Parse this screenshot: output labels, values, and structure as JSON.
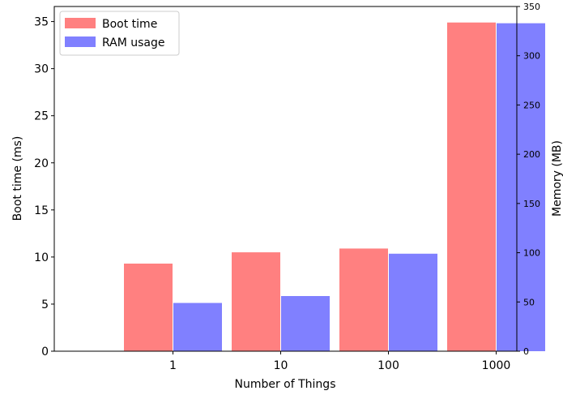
{
  "chart_data": {
    "type": "bar",
    "xlabel": "Number of Things",
    "ylabel_left": "Boot time (ms)",
    "ylabel_right": "Memory (MB)",
    "categories": [
      "1",
      "10",
      "100",
      "1000"
    ],
    "series": [
      {
        "name": "Boot time",
        "axis": "left",
        "color": "#ff8080",
        "values": [
          9.3,
          10.5,
          10.9,
          34.9
        ]
      },
      {
        "name": "RAM usage",
        "axis": "right",
        "color": "#8080ff",
        "values": [
          49,
          56,
          99,
          333
        ]
      }
    ],
    "ylim_left": [
      0,
      36.6
    ],
    "ylim_right": [
      0,
      350
    ],
    "yticks_left": [
      "0",
      "5",
      "10",
      "15",
      "20",
      "25",
      "30",
      "35"
    ],
    "yticks_right": [
      "0",
      "50",
      "100",
      "150",
      "200",
      "250",
      "300",
      "350"
    ],
    "legend": {
      "position": "top-left"
    },
    "grid": false
  }
}
